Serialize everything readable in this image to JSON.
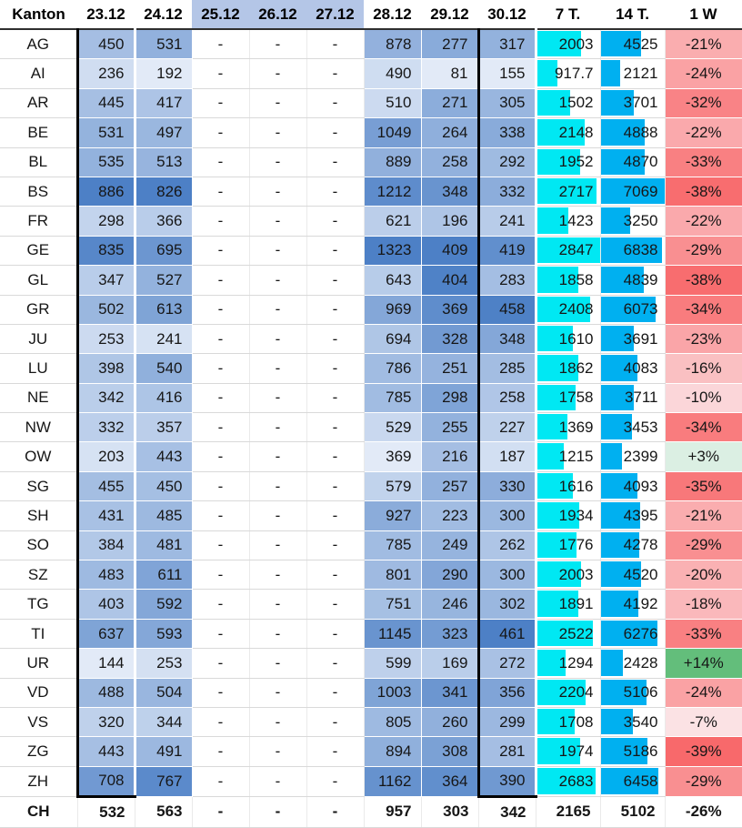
{
  "colors": {
    "heat_low": "#E2EAF7",
    "heat_high": "#4D80C6",
    "header_highlight": "#B4C6E7",
    "bar_7t": "#00E8F3",
    "bar_14t": "#00B0F0",
    "week_negative": "#F8696B",
    "week_neutral": "#FCFCFF",
    "week_positive": "#63BE7B",
    "header_rule": "#2f2f2f",
    "box_border": "#000000",
    "grid_line": "#d9d9d9"
  },
  "table": {
    "columns": [
      "Kanton",
      "23.12",
      "24.12",
      "25.12",
      "26.12",
      "27.12",
      "28.12",
      "29.12",
      "30.12",
      "7 T.",
      "14 T.",
      "1 W"
    ],
    "highlighted_header_columns": [
      "25.12",
      "26.12",
      "27.12"
    ],
    "boxed_columns": [
      "23.12",
      "30.12"
    ],
    "dash": "-",
    "rows": [
      {
        "kanton": "AG",
        "d": [
          450,
          531,
          null,
          null,
          null,
          878,
          277,
          317
        ],
        "t7": 2003,
        "t14": 4525,
        "w1": "-21%"
      },
      {
        "kanton": "AI",
        "d": [
          236,
          192,
          null,
          null,
          null,
          490,
          81,
          155
        ],
        "t7": 917.7,
        "t14": 2121,
        "w1": "-24%"
      },
      {
        "kanton": "AR",
        "d": [
          445,
          417,
          null,
          null,
          null,
          510,
          271,
          305
        ],
        "t7": 1502,
        "t14": 3701,
        "w1": "-32%"
      },
      {
        "kanton": "BE",
        "d": [
          531,
          497,
          null,
          null,
          null,
          1049,
          264,
          338
        ],
        "t7": 2148,
        "t14": 4888,
        "w1": "-22%"
      },
      {
        "kanton": "BL",
        "d": [
          535,
          513,
          null,
          null,
          null,
          889,
          258,
          292
        ],
        "t7": 1952,
        "t14": 4870,
        "w1": "-33%"
      },
      {
        "kanton": "BS",
        "d": [
          886,
          826,
          null,
          null,
          null,
          1212,
          348,
          332
        ],
        "t7": 2717,
        "t14": 7069,
        "w1": "-38%"
      },
      {
        "kanton": "FR",
        "d": [
          298,
          366,
          null,
          null,
          null,
          621,
          196,
          241
        ],
        "t7": 1423,
        "t14": 3250,
        "w1": "-22%"
      },
      {
        "kanton": "GE",
        "d": [
          835,
          695,
          null,
          null,
          null,
          1323,
          409,
          419
        ],
        "t7": 2847,
        "t14": 6838,
        "w1": "-29%"
      },
      {
        "kanton": "GL",
        "d": [
          347,
          527,
          null,
          null,
          null,
          643,
          404,
          283
        ],
        "t7": 1858,
        "t14": 4839,
        "w1": "-38%"
      },
      {
        "kanton": "GR",
        "d": [
          502,
          613,
          null,
          null,
          null,
          969,
          369,
          458
        ],
        "t7": 2408,
        "t14": 6073,
        "w1": "-34%"
      },
      {
        "kanton": "JU",
        "d": [
          253,
          241,
          null,
          null,
          null,
          694,
          328,
          348
        ],
        "t7": 1610,
        "t14": 3691,
        "w1": "-23%"
      },
      {
        "kanton": "LU",
        "d": [
          398,
          540,
          null,
          null,
          null,
          786,
          251,
          285
        ],
        "t7": 1862,
        "t14": 4083,
        "w1": "-16%"
      },
      {
        "kanton": "NE",
        "d": [
          342,
          416,
          null,
          null,
          null,
          785,
          298,
          258
        ],
        "t7": 1758,
        "t14": 3711,
        "w1": "-10%"
      },
      {
        "kanton": "NW",
        "d": [
          332,
          357,
          null,
          null,
          null,
          529,
          255,
          227
        ],
        "t7": 1369,
        "t14": 3453,
        "w1": "-34%"
      },
      {
        "kanton": "OW",
        "d": [
          203,
          443,
          null,
          null,
          null,
          369,
          216,
          187
        ],
        "t7": 1215,
        "t14": 2399,
        "w1": "+3%"
      },
      {
        "kanton": "SG",
        "d": [
          455,
          450,
          null,
          null,
          null,
          579,
          257,
          330
        ],
        "t7": 1616,
        "t14": 4093,
        "w1": "-35%"
      },
      {
        "kanton": "SH",
        "d": [
          431,
          485,
          null,
          null,
          null,
          927,
          223,
          300
        ],
        "t7": 1934,
        "t14": 4395,
        "w1": "-21%"
      },
      {
        "kanton": "SO",
        "d": [
          384,
          481,
          null,
          null,
          null,
          785,
          249,
          262
        ],
        "t7": 1776,
        "t14": 4278,
        "w1": "-29%"
      },
      {
        "kanton": "SZ",
        "d": [
          483,
          611,
          null,
          null,
          null,
          801,
          290,
          300
        ],
        "t7": 2003,
        "t14": 4520,
        "w1": "-20%"
      },
      {
        "kanton": "TG",
        "d": [
          403,
          592,
          null,
          null,
          null,
          751,
          246,
          302
        ],
        "t7": 1891,
        "t14": 4192,
        "w1": "-18%"
      },
      {
        "kanton": "TI",
        "d": [
          637,
          593,
          null,
          null,
          null,
          1145,
          323,
          461
        ],
        "t7": 2522,
        "t14": 6276,
        "w1": "-33%"
      },
      {
        "kanton": "UR",
        "d": [
          144,
          253,
          null,
          null,
          null,
          599,
          169,
          272
        ],
        "t7": 1294,
        "t14": 2428,
        "w1": "+14%"
      },
      {
        "kanton": "VD",
        "d": [
          488,
          504,
          null,
          null,
          null,
          1003,
          341,
          356
        ],
        "t7": 2204,
        "t14": 5106,
        "w1": "-24%"
      },
      {
        "kanton": "VS",
        "d": [
          320,
          344,
          null,
          null,
          null,
          805,
          260,
          299
        ],
        "t7": 1708,
        "t14": 3540,
        "w1": "-7%"
      },
      {
        "kanton": "ZG",
        "d": [
          443,
          491,
          null,
          null,
          null,
          894,
          308,
          281
        ],
        "t7": 1974,
        "t14": 5186,
        "w1": "-39%"
      },
      {
        "kanton": "ZH",
        "d": [
          708,
          767,
          null,
          null,
          null,
          1162,
          364,
          390
        ],
        "t7": 2683,
        "t14": 6458,
        "w1": "-29%"
      }
    ],
    "total_row": {
      "kanton": "CH",
      "d": [
        532,
        563,
        null,
        null,
        null,
        957,
        303,
        342
      ],
      "t7": 2165,
      "t14": 5102,
      "w1": "-26%"
    }
  }
}
